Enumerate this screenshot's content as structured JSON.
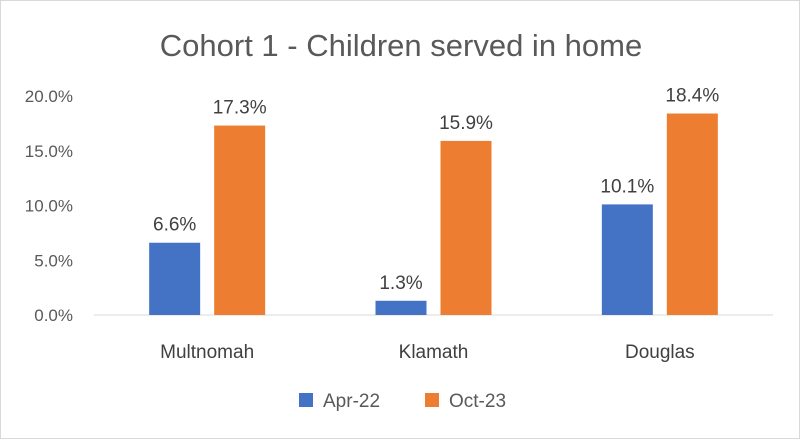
{
  "chart_data": {
    "type": "bar",
    "title": "Cohort 1 - Children served in home",
    "categories": [
      "Multnomah",
      "Klamath",
      "Douglas"
    ],
    "series": [
      {
        "name": "Apr-22",
        "values": [
          6.6,
          1.3,
          10.1
        ],
        "labels": [
          "6.6%",
          "1.3%",
          "10.1%"
        ],
        "color": "#4472C4"
      },
      {
        "name": "Oct-23",
        "values": [
          17.3,
          15.9,
          18.4
        ],
        "labels": [
          "17.3%",
          "15.9%",
          "18.4%"
        ],
        "color": "#ED7D31"
      }
    ],
    "y_ticks": [
      "0.0%",
      "5.0%",
      "10.0%",
      "15.0%",
      "20.0%"
    ],
    "ylim": [
      0,
      20
    ],
    "grid": false,
    "legend": "bottom"
  }
}
